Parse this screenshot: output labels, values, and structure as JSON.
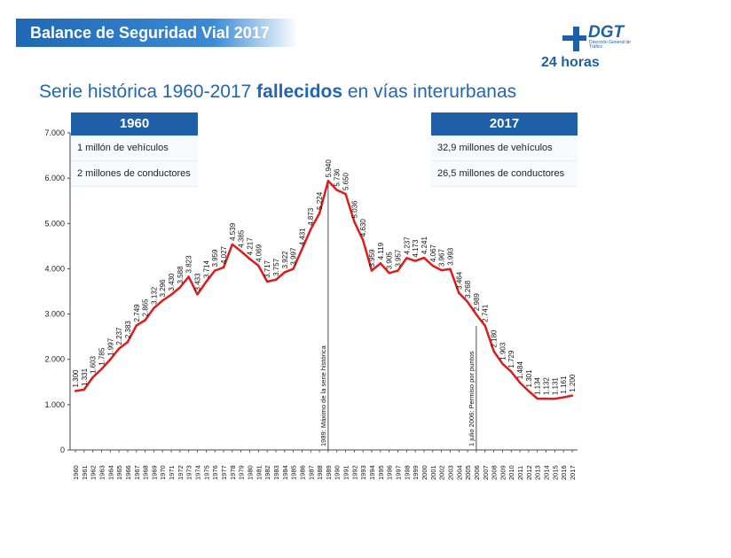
{
  "header": {
    "banner_title": "Balance de Seguridad Vial 2017",
    "logo_text": "DGT",
    "logo_subtitle": "Dirección General de Tráfico",
    "tagline": "24 horas"
  },
  "title": {
    "prefix": "Serie histórica 1960-2017 ",
    "bold": "fallecidos",
    "suffix": " en vías interurbanas"
  },
  "box_1960": {
    "year": "1960",
    "vehicles": "1 millón de vehículos",
    "drivers": "2 millones de conductores"
  },
  "box_2017": {
    "year": "2017",
    "vehicles": "32,9 millones de vehículos",
    "drivers": "26,5 millones de conductores"
  },
  "colors": {
    "line": "#e01b1b",
    "accent": "#1f5fa8"
  },
  "chart_data": {
    "type": "line",
    "title": "",
    "xlabel": "",
    "ylabel": "",
    "ylim": [
      0,
      7000
    ],
    "yticks": [
      "0",
      "1.000",
      "2.000",
      "3.000",
      "4.000",
      "5.000",
      "6.000",
      "7.000"
    ],
    "x": [
      "1960",
      "1961",
      "1962",
      "1963",
      "1964",
      "1965",
      "1966",
      "1967",
      "1968",
      "1969",
      "1970",
      "1971",
      "1972",
      "1973",
      "1974",
      "1975",
      "1976",
      "1977",
      "1978",
      "1979",
      "1980",
      "1981",
      "1982",
      "1983",
      "1984",
      "1985",
      "1986",
      "1987",
      "1988",
      "1989",
      "1990",
      "1991",
      "1992",
      "1993",
      "1994",
      "1995",
      "1996",
      "1997",
      "1998",
      "1999",
      "2000",
      "2001",
      "2002",
      "2003",
      "2004",
      "2005",
      "2006",
      "2007",
      "2008",
      "2009",
      "2010",
      "2011",
      "2012",
      "2013",
      "2014",
      "2015",
      "2016",
      "2017"
    ],
    "values": [
      1300,
      1331,
      1603,
      1785,
      1997,
      2237,
      2383,
      2749,
      2865,
      3132,
      3296,
      3430,
      3588,
      3823,
      3433,
      3714,
      3959,
      4027,
      4539,
      4385,
      4217,
      4069,
      3717,
      3757,
      3922,
      3997,
      4431,
      4873,
      5224,
      5940,
      5736,
      5650,
      5036,
      4630,
      3959,
      4119,
      3905,
      3957,
      4237,
      4173,
      4241,
      4067,
      3967,
      3993,
      3464,
      3268,
      2989,
      2741,
      2180,
      1903,
      1729,
      1484,
      1301,
      1134,
      1132,
      1131,
      1161,
      1200
    ],
    "labels": [
      "1.300",
      "1.331",
      "1.603",
      "1.785",
      "1.997",
      "2.237",
      "2.383",
      "2.749",
      "2.865",
      "3.132",
      "3.296",
      "3.430",
      "3.588",
      "3.823",
      "3.433",
      "3.714",
      "3.959",
      "4.027",
      "4.539",
      "4.385",
      "4.217",
      "4.069",
      "3.717",
      "3.757",
      "3.922",
      "3.997",
      "4.431",
      "4.873",
      "5.224",
      "5.940",
      "5.736",
      "5.650",
      "5.036",
      "4.630",
      "3.959",
      "4.119",
      "3.905",
      "3.957",
      "4.237",
      "4.173",
      "4.241",
      "4.067",
      "3.967",
      "3.993",
      "3.464",
      "3.268",
      "2.989",
      "2.741",
      "2.180",
      "1.903",
      "1.729",
      "1.484",
      "1.301",
      "1.134",
      "1.132",
      "1.131",
      "1.161",
      "1.200"
    ],
    "grid": false,
    "annotations": [
      {
        "year": "1989",
        "text": "1989: Máximo de la serie histórica"
      },
      {
        "year": "2006",
        "text": "1 julio 2006: Permiso por puntos"
      }
    ]
  }
}
